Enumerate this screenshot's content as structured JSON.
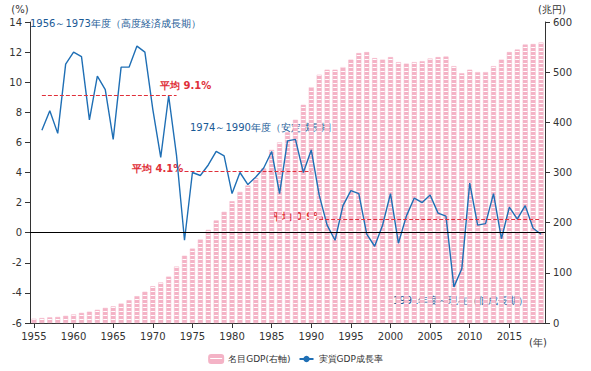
{
  "chart_data": {
    "type": "bar_line",
    "x_label": "(年)",
    "y_label": "(%)",
    "y2_label": "(兆円)",
    "x": [
      1955,
      1956,
      1957,
      1958,
      1959,
      1960,
      1961,
      1962,
      1963,
      1964,
      1965,
      1966,
      1967,
      1968,
      1969,
      1970,
      1971,
      1972,
      1973,
      1974,
      1975,
      1976,
      1977,
      1978,
      1979,
      1980,
      1981,
      1982,
      1983,
      1984,
      1985,
      1986,
      1987,
      1988,
      1989,
      1990,
      1991,
      1992,
      1993,
      1994,
      1995,
      1996,
      1997,
      1998,
      1999,
      2000,
      2001,
      2002,
      2003,
      2004,
      2005,
      2006,
      2007,
      2008,
      2009,
      2010,
      2011,
      2012,
      2013,
      2014,
      2015,
      2016,
      2017,
      2018,
      2019
    ],
    "xlim": [
      1954.5,
      2019.5
    ],
    "xticks": [
      1955,
      1960,
      1965,
      1970,
      1975,
      1980,
      1985,
      1990,
      1995,
      2000,
      2005,
      2010,
      2015
    ],
    "ylim": [
      -6,
      14
    ],
    "yticks": [
      -6,
      -4,
      -2,
      0,
      2,
      4,
      6,
      8,
      10,
      12,
      14
    ],
    "y2lim": [
      0,
      600
    ],
    "y2ticks": [
      0,
      100,
      200,
      300,
      400,
      500,
      600
    ],
    "grid": false,
    "legend": "bottom",
    "series": [
      {
        "name": "名目GDP(右軸)",
        "type": "bar",
        "axis": "y2",
        "color": "#f4b3c6",
        "values": [
          8.6,
          9.9,
          11.2,
          12.0,
          14.2,
          17.0,
          20.2,
          22.5,
          26.3,
          30.0,
          33.2,
          38.9,
          45.4,
          53.4,
          62.2,
          73.3,
          80.7,
          92.4,
          112.5,
          134.0,
          148.3,
          166.6,
          185.6,
          204.4,
          221.5,
          242.8,
          261.1,
          274.1,
          288.8,
          308.2,
          345,
          360,
          380,
          405,
          435,
          470,
          495,
          505,
          505,
          510,
          525,
          538,
          540,
          528,
          525,
          530,
          520,
          517,
          520,
          522,
          527,
          530,
          531,
          512,
          498,
          505,
          500,
          500,
          512,
          525,
          540,
          545,
          555,
          556,
          559
        ]
      },
      {
        "name": "実質GDP成長率",
        "type": "line",
        "color": "#1f6fb5",
        "values": [
          null,
          6.8,
          8.1,
          6.6,
          11.2,
          12.0,
          11.7,
          7.5,
          10.4,
          9.5,
          6.2,
          11.0,
          11.0,
          12.4,
          12.0,
          8.2,
          5.0,
          9.1,
          5.1,
          -0.5,
          4.0,
          3.8,
          4.5,
          5.4,
          5.1,
          2.6,
          4.0,
          3.2,
          3.7,
          4.3,
          5.4,
          2.6,
          6.1,
          6.2,
          4.0,
          5.5,
          2.5,
          0.5,
          -0.5,
          1.8,
          2.8,
          2.6,
          -0.1,
          -0.9,
          0.5,
          2.6,
          -0.7,
          1.1,
          2.3,
          2.0,
          2.5,
          1.3,
          1.1,
          -3.6,
          -2.4,
          3.3,
          0.5,
          0.6,
          2.6,
          -0.4,
          1.7,
          0.9,
          1.8,
          0.3,
          -0.1
        ]
      }
    ],
    "period_averages": [
      {
        "from": 1956,
        "to": 1973,
        "value": 9.1,
        "label": "平均 9.1%"
      },
      {
        "from": 1974,
        "to": 1990,
        "value": 4.1,
        "label": "平均 4.1%"
      },
      {
        "from": 1991,
        "to": 2019,
        "value": 0.9,
        "label": "平均 0.9%"
      }
    ],
    "annotations": [
      "1956～1973年度（高度経済成長期）",
      "1974～1990年度（安定成長期）",
      "1991年度～現在（低成長期）"
    ]
  }
}
